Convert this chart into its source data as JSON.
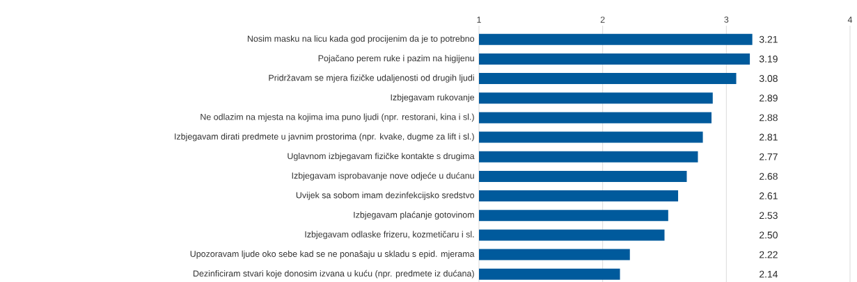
{
  "chart_data": {
    "type": "bar",
    "orientation": "horizontal",
    "categories": [
      "Nosim masku na licu kada god procijenim da je to potrebno",
      "Pojačano perem ruke i pazim na higijenu",
      "Pridržavam se mjera fizičke udaljenosti od drugih ljudi",
      "Izbjegavam rukovanje",
      "Ne odlazim na mjesta na kojima ima puno ljudi (npr. restorani, kina i sl.)",
      "Izbjegavam dirati predmete u javnim prostorima (npr. kvake, dugme za lift i sl.)",
      "Uglavnom izbjegavam fizičke kontakte s drugima",
      "Izbjegavam isprobavanje nove odjeće u dućanu",
      "Uvijek sa sobom imam dezinfekcijsko sredstvo",
      "Izbjegavam plaćanje gotovinom",
      "Izbjegavam odlaske frizeru, kozmetičaru i sl.",
      "Upozoravam ljude oko sebe kad se ne ponašaju u skladu s epid. mjerama",
      "Dezinficiram stvari koje donosim izvana u kuću (npr. predmete iz dućana)"
    ],
    "values": [
      3.21,
      3.19,
      3.08,
      2.89,
      2.88,
      2.81,
      2.77,
      2.68,
      2.61,
      2.53,
      2.5,
      2.22,
      2.14
    ],
    "value_labels": [
      "3.21",
      "3.19",
      "3.08",
      "2.89",
      "2.88",
      "2.81",
      "2.77",
      "2.68",
      "2.61",
      "2.53",
      "2.50",
      "2.22",
      "2.14"
    ],
    "color": "#005a9c",
    "xlim": [
      1,
      4
    ],
    "xticks": [
      1,
      2,
      3,
      4
    ],
    "grid": "x"
  }
}
